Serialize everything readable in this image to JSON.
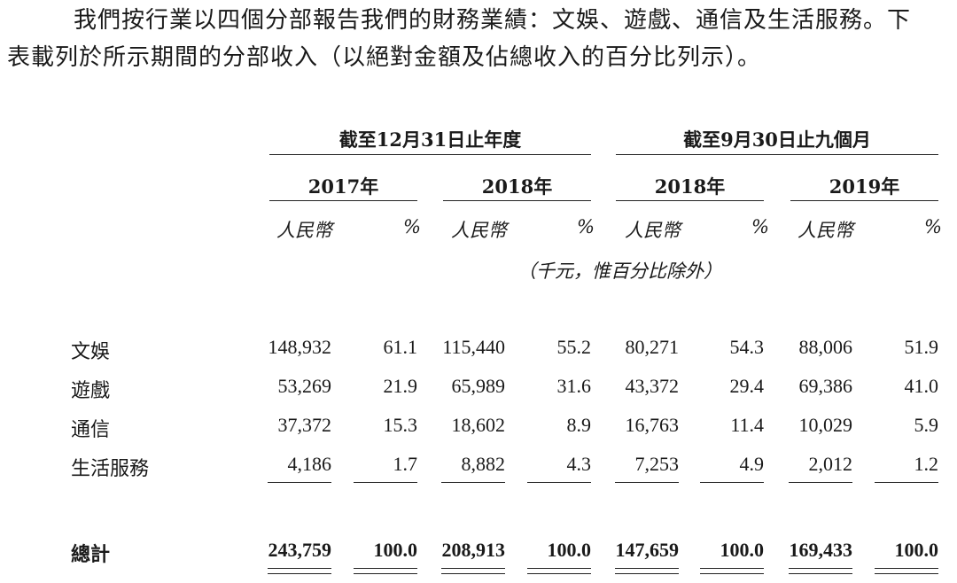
{
  "intro": {
    "line1": "我們按行業以四個分部報告我們的財務業績：文娛、遊戲、通信及生活服務。下",
    "line2": "表載列於所示期間的分部收入（以絕對金額及佔總收入的百分比列示）。"
  },
  "table": {
    "period_headers": [
      "截至12月31日止年度",
      "截至9月30日止九個月"
    ],
    "years": [
      "2017年",
      "2018年",
      "2018年",
      "2019年"
    ],
    "unit_labels": [
      "人民幣",
      "%",
      "人民幣",
      "%",
      "人民幣",
      "%",
      "人民幣",
      "%"
    ],
    "unit_note": "（千元，惟百分比除外）",
    "rows": [
      {
        "label": "文娛",
        "values": [
          "148,932",
          "61.1",
          "115,440",
          "55.2",
          "80,271",
          "54.3",
          "88,006",
          "51.9"
        ]
      },
      {
        "label": "遊戲",
        "values": [
          "53,269",
          "21.9",
          "65,989",
          "31.6",
          "43,372",
          "29.4",
          "69,386",
          "41.0"
        ]
      },
      {
        "label": "通信",
        "values": [
          "37,372",
          "15.3",
          "18,602",
          "8.9",
          "16,763",
          "11.4",
          "10,029",
          "5.9"
        ]
      },
      {
        "label": "生活服務",
        "values": [
          "4,186",
          "1.7",
          "8,882",
          "4.3",
          "7,253",
          "4.9",
          "2,012",
          "1.2"
        ]
      }
    ],
    "total": {
      "label": "總計",
      "values": [
        "243,759",
        "100.0",
        "208,913",
        "100.0",
        "147,659",
        "100.0",
        "169,433",
        "100.0"
      ]
    }
  }
}
